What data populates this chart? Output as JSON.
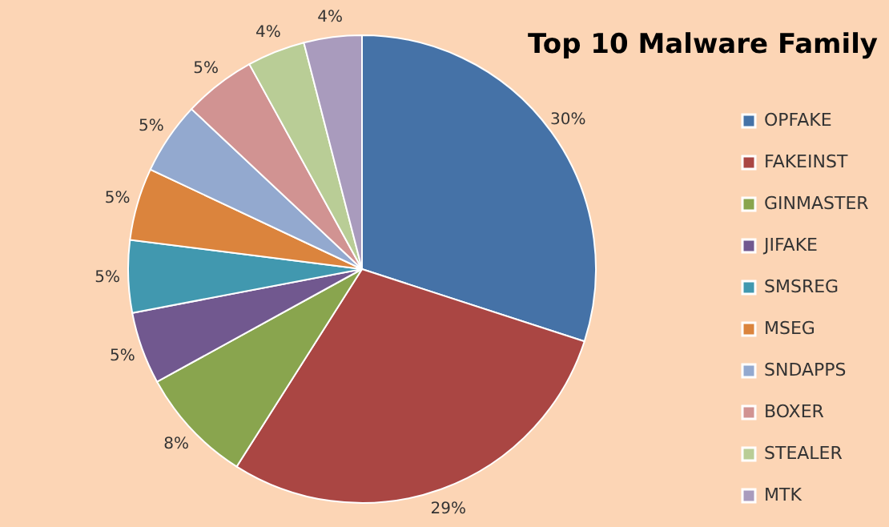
{
  "chart_data": {
    "type": "pie",
    "title": "Top 10 Malware Family",
    "categories": [
      "OPFAKE",
      "FAKEINST",
      "GINMASTER",
      "JIFAKE",
      "SMSREG",
      "MSEG",
      "SNDAPPS",
      "BOXER",
      "STEALER",
      "MTK"
    ],
    "values": [
      30,
      29,
      8,
      5,
      5,
      5,
      5,
      5,
      4,
      4
    ],
    "value_labels": [
      "30%",
      "29%",
      "8%",
      "5%",
      "5%",
      "5%",
      "5%",
      "5%",
      "4%",
      "4%"
    ],
    "colors": [
      "#4572a7",
      "#aa4643",
      "#89a54e",
      "#71588f",
      "#4198af",
      "#db843d",
      "#93a9cf",
      "#d19392",
      "#b9cd96",
      "#a99bbd"
    ],
    "legend": "right"
  }
}
